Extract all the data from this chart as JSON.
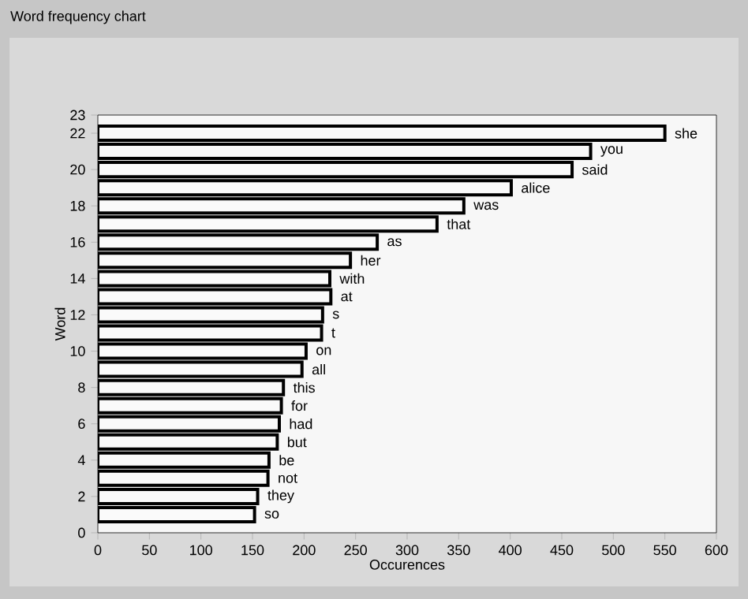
{
  "chart_data": {
    "type": "bar",
    "orientation": "horizontal",
    "title": "Word frequency chart",
    "xlabel": "Occurences",
    "ylabel": "Word",
    "x": [
      22,
      21,
      20,
      19,
      18,
      17,
      16,
      15,
      14,
      13,
      12,
      11,
      10,
      9,
      8,
      7,
      6,
      5,
      4,
      3,
      2,
      1
    ],
    "values": [
      550,
      478,
      460,
      401,
      355,
      329,
      271,
      245,
      225,
      226,
      218,
      217,
      202,
      198,
      180,
      178,
      176,
      174,
      166,
      165,
      155,
      152
    ],
    "color": "#fafafa",
    "xlim": [
      0,
      600
    ],
    "xticks": [
      0,
      50,
      100,
      150,
      200,
      250,
      300,
      350,
      400,
      450,
      500,
      550,
      600
    ],
    "ylim": [
      0,
      23
    ],
    "yticks": [
      0,
      2,
      4,
      6,
      8,
      10,
      12,
      14,
      16,
      18,
      20,
      22,
      23
    ],
    "annotations": [
      {
        "text": "she",
        "x": 550,
        "y": 22
      },
      {
        "text": "you",
        "x": 478,
        "y": 21
      },
      {
        "text": "said",
        "x": 460,
        "y": 20
      },
      {
        "text": "alice",
        "x": 401,
        "y": 19
      },
      {
        "text": "was",
        "x": 355,
        "y": 18
      },
      {
        "text": "that",
        "x": 329,
        "y": 17
      },
      {
        "text": "as",
        "x": 271,
        "y": 16
      },
      {
        "text": "her",
        "x": 245,
        "y": 15
      },
      {
        "text": "with",
        "x": 225,
        "y": 14
      },
      {
        "text": "at",
        "x": 226,
        "y": 13
      },
      {
        "text": "s",
        "x": 218,
        "y": 12
      },
      {
        "text": "t",
        "x": 217,
        "y": 11
      },
      {
        "text": "on",
        "x": 202,
        "y": 10
      },
      {
        "text": "all",
        "x": 198,
        "y": 9
      },
      {
        "text": "this",
        "x": 180,
        "y": 8
      },
      {
        "text": "for",
        "x": 178,
        "y": 7
      },
      {
        "text": "had",
        "x": 176,
        "y": 6
      },
      {
        "text": "but",
        "x": 174,
        "y": 5
      },
      {
        "text": "be",
        "x": 166,
        "y": 4
      },
      {
        "text": "not",
        "x": 165,
        "y": 3
      },
      {
        "text": "they",
        "x": 155,
        "y": 2
      },
      {
        "text": "so",
        "x": 152,
        "y": 1
      }
    ]
  }
}
